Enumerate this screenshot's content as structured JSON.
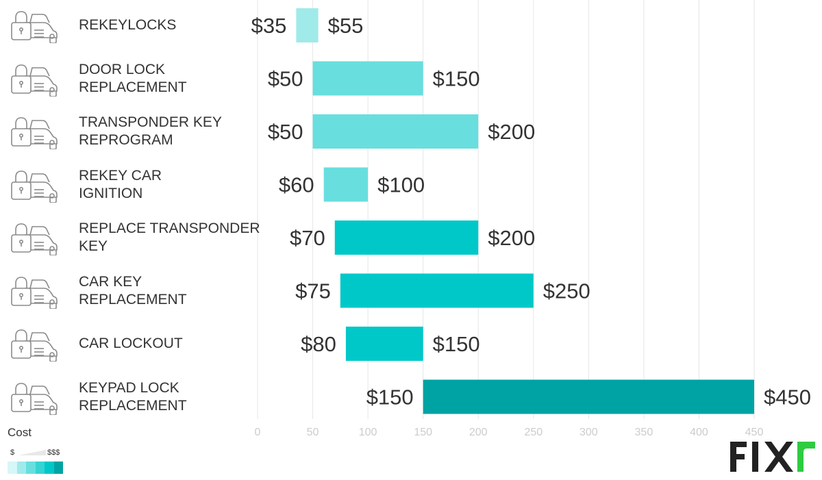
{
  "chart_data": {
    "type": "bar",
    "orientation": "horizontal-range",
    "title": "",
    "xlabel": "",
    "ylabel": "",
    "xlim": [
      0,
      450
    ],
    "xticks": [
      0,
      50,
      100,
      150,
      200,
      250,
      300,
      350,
      400,
      450
    ],
    "grid": true,
    "categories": [
      "REKEYLOCKS",
      "DOOR LOCK REPLACEMENT",
      "TRANSPONDER KEY REPROGRAM",
      "REKEY CAR IGNITION",
      "REPLACE TRANSPONDER KEY",
      "CAR KEY REPLACEMENT",
      "CAR LOCKOUT",
      "KEYPAD LOCK REPLACEMENT"
    ],
    "category_lines": [
      [
        "REKEYLOCKS"
      ],
      [
        "DOOR LOCK",
        "REPLACEMENT"
      ],
      [
        "TRANSPONDER KEY",
        "REPROGRAM"
      ],
      [
        "REKEY CAR",
        "IGNITION"
      ],
      [
        "REPLACE TRANSPONDER",
        "KEY"
      ],
      [
        "CAR KEY",
        "REPLACEMENT"
      ],
      [
        "CAR LOCKOUT"
      ],
      [
        "KEYPAD LOCK",
        "REPLACEMENT"
      ]
    ],
    "low": [
      35,
      50,
      50,
      60,
      70,
      75,
      80,
      150
    ],
    "high": [
      55,
      150,
      200,
      100,
      200,
      250,
      150,
      450
    ],
    "low_labels": [
      "$35",
      "$50",
      "$50",
      "$60",
      "$70",
      "$75",
      "$80",
      "$150"
    ],
    "high_labels": [
      "$55",
      "$150",
      "$200",
      "$100",
      "$200",
      "$250",
      "$150",
      "$450"
    ],
    "bar_colors": [
      "#a0eaea",
      "#69dede",
      "#69dede",
      "#69dede",
      "#00c8c8",
      "#00c8c8",
      "#00c8c8",
      "#00a3a3"
    ]
  },
  "legend": {
    "title": "Cost",
    "low_label": "$",
    "high_label": "$$$",
    "swatches": [
      "#d6f7f7",
      "#a0eaea",
      "#69dede",
      "#36d3d3",
      "#00c8c8",
      "#00a3a3"
    ]
  },
  "brand": {
    "name": "FIXR",
    "color_dark": "#222222",
    "color_accent": "#2ecc40"
  },
  "colors": {
    "grid": "#e6e6e6",
    "text": "#333333",
    "tick": "#cccccc",
    "icon": "#8a8a8a"
  }
}
